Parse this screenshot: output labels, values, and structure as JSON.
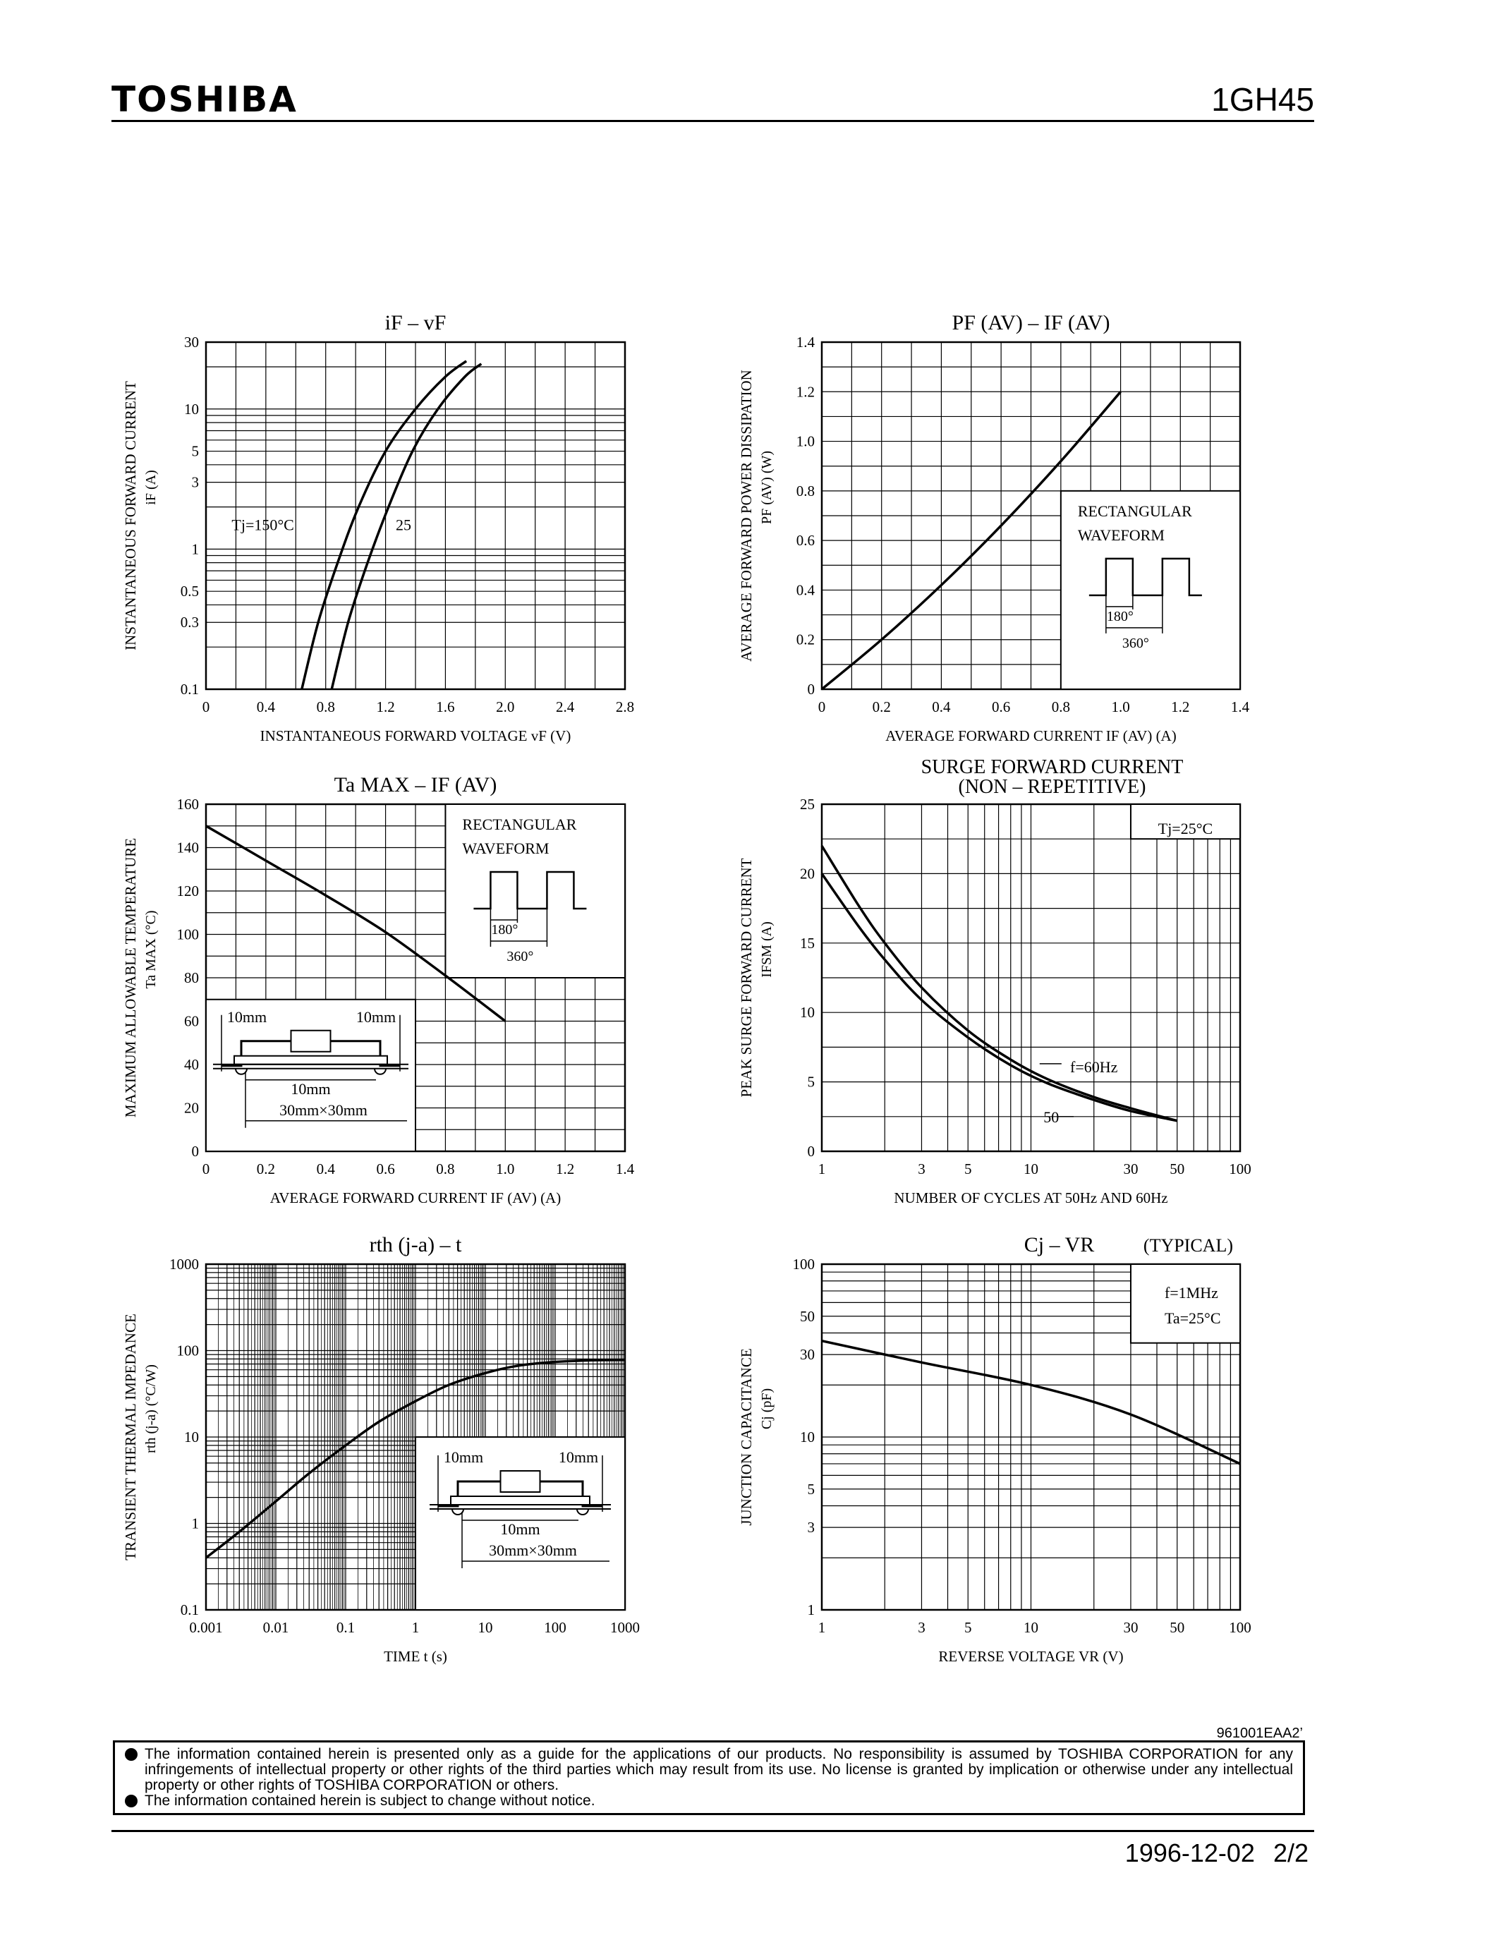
{
  "header": {
    "brand": "TOSHIBA",
    "part_number": "1GH45"
  },
  "chart_data": [
    {
      "id": "if-vf",
      "type": "line",
      "title": "iF – vF",
      "xlabel": "INSTANTANEOUS FORWARD VOLTAGE  vF  (V)",
      "ylabel": "INSTANTANEOUS FORWARD CURRENT",
      "ylabel2": "iF  (A)",
      "xscale": "linear",
      "yscale": "log",
      "xlim": [
        0,
        2.8
      ],
      "ylim": [
        0.1,
        30
      ],
      "xticks": [
        0,
        0.4,
        0.8,
        1.2,
        1.6,
        2.0,
        2.4,
        2.8
      ],
      "xtick_labels": [
        "0",
        "0.4",
        "0.8",
        "1.2",
        "1.6",
        "2.0",
        "2.4",
        "2.8"
      ],
      "yticks": [
        0.1,
        0.3,
        0.5,
        1,
        3,
        5,
        10,
        30
      ],
      "ytick_labels": [
        "0.1",
        "0.3",
        "0.5",
        "1",
        "3",
        "5",
        "10",
        "30"
      ],
      "grid": true,
      "series": [
        {
          "name": "Tj=150°C",
          "x": [
            0.64,
            0.75,
            0.88,
            1.02,
            1.2,
            1.4,
            1.6,
            1.74
          ],
          "y": [
            0.1,
            0.3,
            0.8,
            2,
            5,
            10,
            17,
            22
          ]
        },
        {
          "name": "25",
          "x": [
            0.84,
            0.95,
            1.08,
            1.22,
            1.38,
            1.55,
            1.73,
            1.84
          ],
          "y": [
            0.1,
            0.3,
            0.8,
            2,
            5,
            10,
            17,
            21
          ]
        }
      ],
      "annotations": [
        "Tj=150°C",
        "25"
      ]
    },
    {
      "id": "pf-if",
      "type": "line",
      "title": "PF (AV) – IF (AV)",
      "xlabel": "AVERAGE FORWARD CURRENT  IF (AV)  (A)",
      "ylabel": "AVERAGE FORWARD POWER DISSIPATION",
      "ylabel2": "PF (AV)  (W)",
      "xscale": "linear",
      "yscale": "linear",
      "xlim": [
        0,
        1.4
      ],
      "ylim": [
        0,
        1.4
      ],
      "xticks": [
        0,
        0.2,
        0.4,
        0.6,
        0.8,
        1.0,
        1.2,
        1.4
      ],
      "xtick_labels": [
        "0",
        "0.2",
        "0.4",
        "0.6",
        "0.8",
        "1.0",
        "1.2",
        "1.4"
      ],
      "yticks": [
        0,
        0.2,
        0.4,
        0.6,
        0.8,
        1.0,
        1.2,
        1.4
      ],
      "ytick_labels": [
        "0",
        "0.2",
        "0.4",
        "0.6",
        "0.8",
        "1.0",
        "1.2",
        "1.4"
      ],
      "grid": true,
      "series": [
        {
          "name": "",
          "x": [
            0,
            0.2,
            0.4,
            0.6,
            0.8,
            1.0
          ],
          "y": [
            0,
            0.2,
            0.42,
            0.66,
            0.92,
            1.2
          ]
        }
      ],
      "waveform_label": [
        "RECTANGULAR",
        "WAVEFORM"
      ],
      "waveform_marks": [
        "180°",
        "360°"
      ]
    },
    {
      "id": "ta-if",
      "type": "line",
      "title": "Ta MAX – IF (AV)",
      "xlabel": "AVERAGE FORWARD CURRENT  IF (AV)  (A)",
      "ylabel": "MAXIMUM ALLOWABLE TEMPERATURE",
      "ylabel2": "Ta  MAX  (°C)",
      "xscale": "linear",
      "yscale": "linear",
      "xlim": [
        0,
        1.4
      ],
      "ylim": [
        0,
        160
      ],
      "xticks": [
        0,
        0.2,
        0.4,
        0.6,
        0.8,
        1.0,
        1.2,
        1.4
      ],
      "xtick_labels": [
        "0",
        "0.2",
        "0.4",
        "0.6",
        "0.8",
        "1.0",
        "1.2",
        "1.4"
      ],
      "yticks": [
        0,
        20,
        40,
        60,
        80,
        100,
        120,
        140,
        160
      ],
      "ytick_labels": [
        "0",
        "20",
        "40",
        "60",
        "80",
        "100",
        "120",
        "140",
        "160"
      ],
      "grid": true,
      "series": [
        {
          "name": "",
          "x": [
            0,
            0.2,
            0.4,
            0.6,
            0.8,
            1.0
          ],
          "y": [
            150,
            134,
            118,
            101,
            81,
            60
          ]
        }
      ],
      "waveform_label": [
        "RECTANGULAR",
        "WAVEFORM"
      ],
      "waveform_marks": [
        "180°",
        "360°"
      ],
      "mount_labels": [
        "10mm",
        "10mm",
        "10mm",
        "30mm×30mm"
      ]
    },
    {
      "id": "surge",
      "type": "line",
      "title": "SURGE FORWARD CURRENT",
      "subtitle": "(NON – REPETITIVE)",
      "xlabel": "NUMBER OF CYCLES AT 50Hz AND 60Hz",
      "ylabel": "PEAK SURGE FORWARD CURRENT",
      "ylabel2": "IFSM  (A)",
      "xscale": "log",
      "yscale": "linear",
      "xlim": [
        1,
        100
      ],
      "ylim": [
        0,
        25
      ],
      "xticks": [
        1,
        3,
        5,
        10,
        30,
        50,
        100
      ],
      "xtick_labels": [
        "1",
        "3",
        "5",
        "10",
        "30",
        "50",
        "100"
      ],
      "yticks": [
        0,
        5,
        10,
        15,
        20,
        25
      ],
      "ytick_labels": [
        "0",
        "5",
        "10",
        "15",
        "20",
        "25"
      ],
      "grid": true,
      "series": [
        {
          "name": "f=60Hz",
          "x": [
            1,
            1.5,
            2,
            3,
            5,
            8,
            12,
            20,
            30,
            50
          ],
          "y": [
            22,
            17.7,
            15,
            11.8,
            8.7,
            6.6,
            5.2,
            3.9,
            3.1,
            2.2
          ]
        },
        {
          "name": "50",
          "x": [
            1,
            1.5,
            2,
            3,
            5,
            8,
            12,
            20,
            30,
            50
          ],
          "y": [
            20,
            16.2,
            13.8,
            10.9,
            8.2,
            6.2,
            4.9,
            3.7,
            2.9,
            2.2
          ]
        }
      ],
      "annotations": [
        "Tj=25°C",
        "f=60Hz",
        "50"
      ]
    },
    {
      "id": "rth-t",
      "type": "line",
      "title": "rth (j-a) – t",
      "xlabel": "TIME  t  (s)",
      "ylabel": "TRANSIENT THERMAL IMPEDANCE",
      "ylabel2": "rth (j-a)  (°C/W)",
      "xscale": "log",
      "yscale": "log",
      "xlim": [
        0.001,
        1000
      ],
      "ylim": [
        0.1,
        1000
      ],
      "xticks": [
        0.001,
        0.01,
        0.1,
        1,
        10,
        100,
        1000
      ],
      "xtick_labels": [
        "0.001",
        "0.01",
        "0.1",
        "1",
        "10",
        "100",
        "1000"
      ],
      "yticks": [
        0.1,
        1,
        10,
        100,
        1000
      ],
      "ytick_labels": [
        "0.1",
        "1",
        "10",
        "100",
        "1000"
      ],
      "grid": true,
      "series": [
        {
          "name": "",
          "x": [
            0.001,
            0.003,
            0.01,
            0.03,
            0.1,
            0.3,
            1,
            3,
            10,
            30,
            100,
            300,
            1000
          ],
          "y": [
            0.4,
            0.8,
            1.8,
            3.8,
            8,
            15,
            26,
            40,
            55,
            67,
            74,
            77,
            78
          ]
        }
      ],
      "mount_labels": [
        "10mm",
        "10mm",
        "10mm",
        "30mm×30mm"
      ]
    },
    {
      "id": "cj-vr",
      "type": "line",
      "title": "Cj – VR",
      "title_note": "(TYPICAL)",
      "xlabel": "REVERSE VOLTAGE  VR  (V)",
      "ylabel": "JUNCTION CAPACITANCE",
      "ylabel2": "Cj  (pF)",
      "xscale": "log",
      "yscale": "log",
      "xlim": [
        1,
        100
      ],
      "ylim": [
        1,
        100
      ],
      "xticks": [
        1,
        3,
        5,
        10,
        30,
        50,
        100
      ],
      "xtick_labels": [
        "1",
        "3",
        "5",
        "10",
        "30",
        "50",
        "100"
      ],
      "yticks": [
        1,
        3,
        5,
        10,
        30,
        50,
        100
      ],
      "ytick_labels": [
        "1",
        "3",
        "5",
        "10",
        "30",
        "50",
        "100"
      ],
      "grid": true,
      "series": [
        {
          "name": "",
          "x": [
            1,
            3,
            10,
            30,
            100
          ],
          "y": [
            36,
            27,
            20,
            13.5,
            7
          ]
        }
      ],
      "annotations": [
        "f=1MHz",
        "Ta=25°C"
      ]
    }
  ],
  "doc_code": "961001EAA2’",
  "disclaimer": [
    "The information contained herein is presented only as a guide for the applications of our products. No responsibility is assumed by TOSHIBA CORPORATION for any infringements of intellectual property or other rights of the third parties which may result from its use. No license is granted by implication or otherwise under any intellectual property or other rights of TOSHIBA CORPORATION or others.",
    "The information contained herein is subject to change without notice."
  ],
  "footer": {
    "date": "1996-12-02",
    "page": "2/2"
  }
}
